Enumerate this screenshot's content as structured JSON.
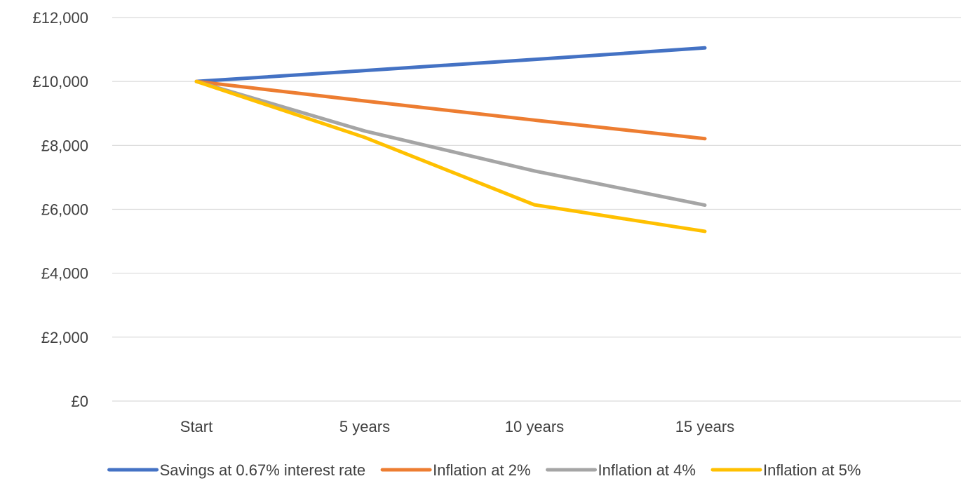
{
  "chart_data": {
    "type": "line",
    "categories": [
      "Start",
      "5 years",
      "10 years",
      "15 years"
    ],
    "series": [
      {
        "name": "Savings at 0.67% interest rate",
        "color": "#4472C4",
        "values": [
          10000,
          10340,
          10690,
          11050
        ]
      },
      {
        "name": "Inflation at 2%",
        "color": "#ED7D31",
        "values": [
          10000,
          9390,
          8790,
          8210
        ]
      },
      {
        "name": "Inflation at 4%",
        "color": "#A5A5A5",
        "values": [
          10000,
          8450,
          7200,
          6130
        ]
      },
      {
        "name": "Inflation at 5%",
        "color": "#FFC000",
        "values": [
          10000,
          8250,
          6140,
          5310
        ]
      }
    ],
    "y_ticks": [
      "£0",
      "£2,000",
      "£4,000",
      "£6,000",
      "£8,000",
      "£10,000",
      "£12,000"
    ],
    "ylim": [
      0,
      12000
    ],
    "grid": true,
    "legend_position": "bottom"
  }
}
